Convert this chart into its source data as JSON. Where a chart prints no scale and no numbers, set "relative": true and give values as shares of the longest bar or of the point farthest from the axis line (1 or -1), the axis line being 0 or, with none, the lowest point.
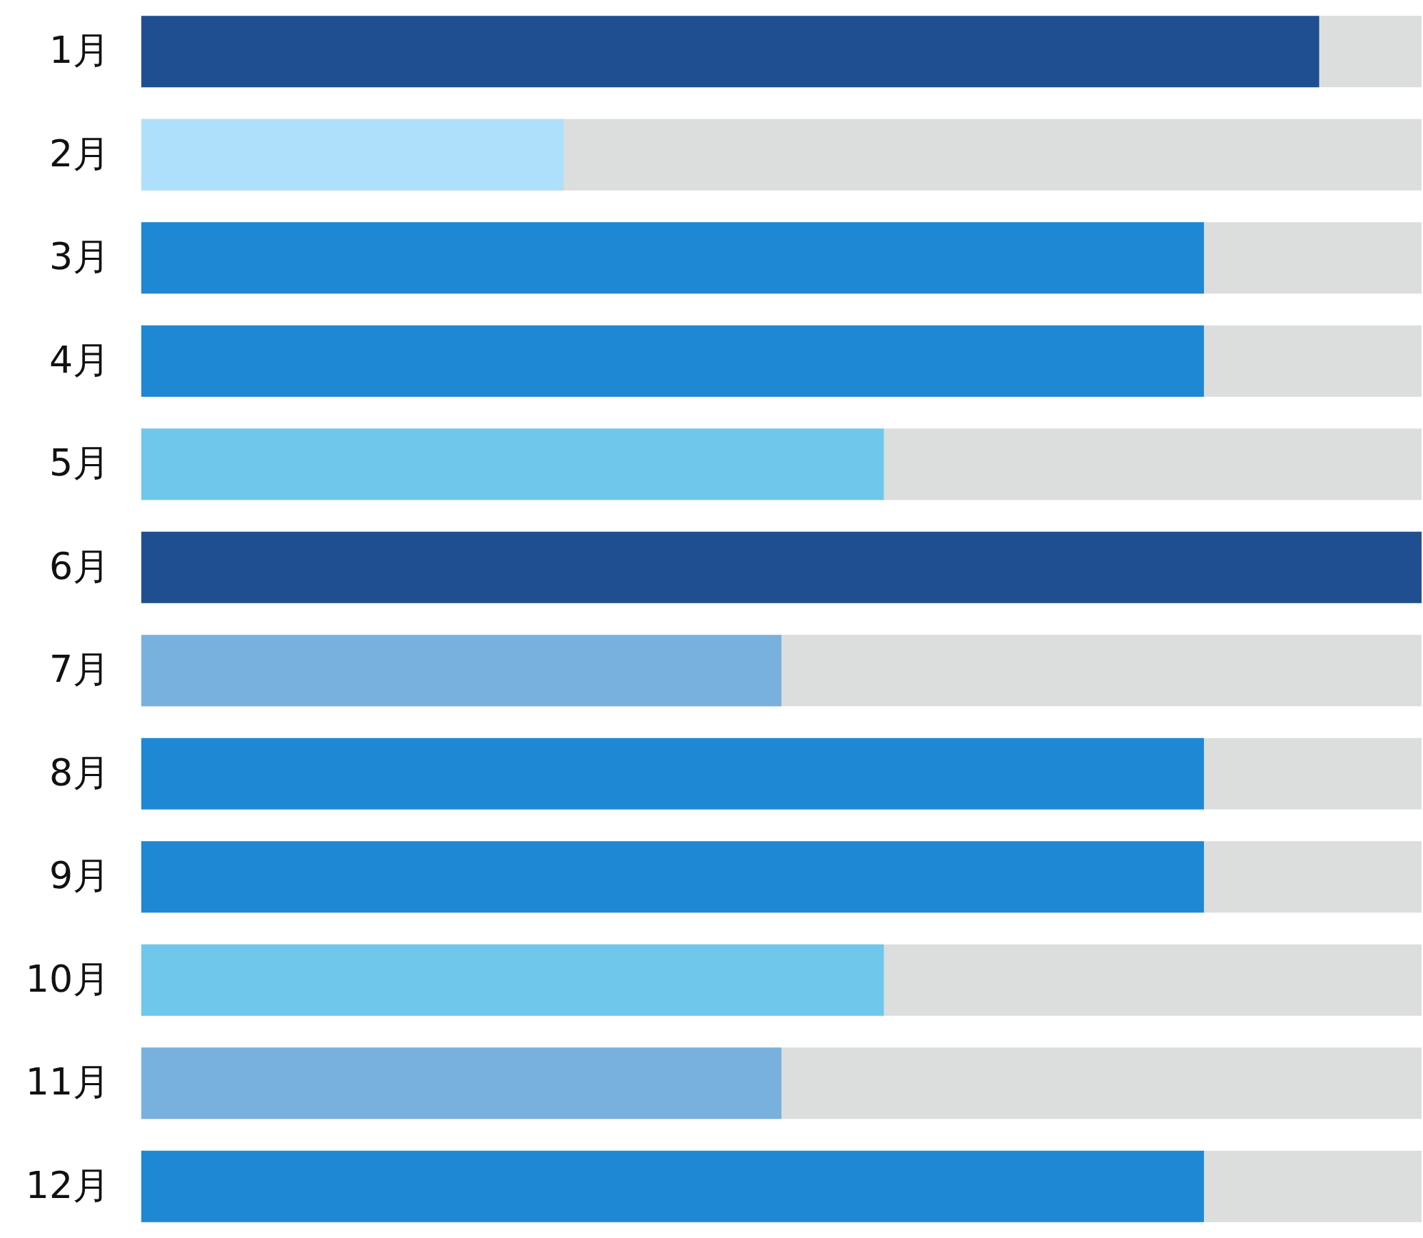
{
  "chart_data": {
    "type": "bar",
    "orientation": "horizontal",
    "relative": true,
    "categories": [
      "1月",
      "2月",
      "3月",
      "4月",
      "5月",
      "6月",
      "7月",
      "8月",
      "9月",
      "10月",
      "11月",
      "12月"
    ],
    "values": [
      0.92,
      0.33,
      0.83,
      0.83,
      0.58,
      1,
      0.5,
      0.83,
      0.83,
      0.58,
      0.5,
      0.83
    ],
    "colors": [
      "#1f4e91",
      "#aee0fb",
      "#1e88d4",
      "#1e88d4",
      "#6fc8ec",
      "#1f4e91",
      "#78b1dd",
      "#1e88d4",
      "#1e88d4",
      "#6fc8ec",
      "#78b1dd",
      "#1e88d4"
    ]
  }
}
